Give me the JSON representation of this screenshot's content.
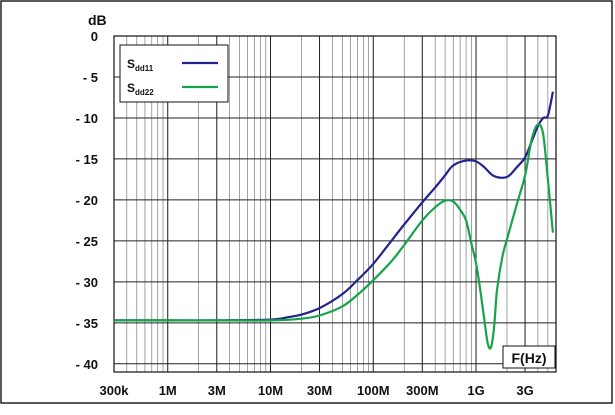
{
  "chart_data": {
    "type": "line",
    "title": "",
    "ylabel": "dB",
    "xlabel": "F(Hz)",
    "xscale": "log",
    "xlim": [
      300000,
      6000000000
    ],
    "ylim": [
      -41,
      0
    ],
    "grid": true,
    "legend_position": "top-left",
    "x_ticks": [
      {
        "value": 300000,
        "label": "300k"
      },
      {
        "value": 1000000,
        "label": "1M"
      },
      {
        "value": 3000000,
        "label": "3M"
      },
      {
        "value": 10000000,
        "label": "10M"
      },
      {
        "value": 30000000,
        "label": "30M"
      },
      {
        "value": 100000000,
        "label": "100M"
      },
      {
        "value": 300000000,
        "label": "300M"
      },
      {
        "value": 1000000000,
        "label": "1G"
      },
      {
        "value": 3000000000,
        "label": "3G"
      }
    ],
    "y_ticks": [
      {
        "value": 0,
        "label": "0"
      },
      {
        "value": -5,
        "label": "- 5"
      },
      {
        "value": -10,
        "label": "- 10"
      },
      {
        "value": -15,
        "label": "- 15"
      },
      {
        "value": -20,
        "label": "- 20"
      },
      {
        "value": -25,
        "label": "- 25"
      },
      {
        "value": -30,
        "label": "- 30"
      },
      {
        "value": -35,
        "label": "- 35"
      },
      {
        "value": -40,
        "label": "- 40"
      }
    ],
    "series": [
      {
        "name": "S",
        "subscript": "dd11",
        "color": "#23238f",
        "x": [
          300000,
          1000000,
          3000000,
          10000000,
          15000000,
          20000000,
          30000000,
          50000000,
          70000000,
          100000000,
          150000000,
          200000000,
          300000000,
          400000000,
          500000000,
          600000000,
          800000000,
          1000000000,
          1200000000,
          1500000000,
          2000000000,
          2500000000,
          3000000000,
          3500000000,
          4000000000,
          4500000000,
          5000000000,
          5600000000
        ],
        "y": [
          -34.7,
          -34.7,
          -34.7,
          -34.6,
          -34.3,
          -34.0,
          -33.2,
          -31.5,
          -29.8,
          -27.8,
          -25.0,
          -23.0,
          -20.3,
          -18.5,
          -17.0,
          -15.8,
          -15.2,
          -15.3,
          -16.0,
          -17.1,
          -17.2,
          -16.0,
          -14.8,
          -12.8,
          -11.0,
          -10.0,
          -9.7,
          -6.8
        ]
      },
      {
        "name": "S",
        "subscript": "dd22",
        "color": "#16a34a",
        "x": [
          300000,
          1000000,
          3000000,
          10000000,
          20000000,
          30000000,
          50000000,
          70000000,
          100000000,
          150000000,
          200000000,
          300000000,
          400000000,
          500000000,
          600000000,
          700000000,
          800000000,
          900000000,
          1000000000,
          1100000000,
          1200000000,
          1300000000,
          1400000000,
          1500000000,
          1600000000,
          1800000000,
          2000000000,
          2500000000,
          3000000000,
          3500000000,
          4000000000,
          4500000000,
          5000000000,
          5600000000
        ],
        "y": [
          -34.7,
          -34.7,
          -34.7,
          -34.7,
          -34.5,
          -34.1,
          -33.0,
          -31.6,
          -29.8,
          -27.5,
          -25.5,
          -22.5,
          -20.9,
          -20.1,
          -20.2,
          -21.2,
          -22.5,
          -25.3,
          -27.7,
          -31.0,
          -34.5,
          -37.5,
          -38.0,
          -35.5,
          -31.0,
          -27.0,
          -24.8,
          -20.5,
          -17.0,
          -12.5,
          -10.8,
          -12.0,
          -17.5,
          -24.0
        ]
      }
    ]
  }
}
